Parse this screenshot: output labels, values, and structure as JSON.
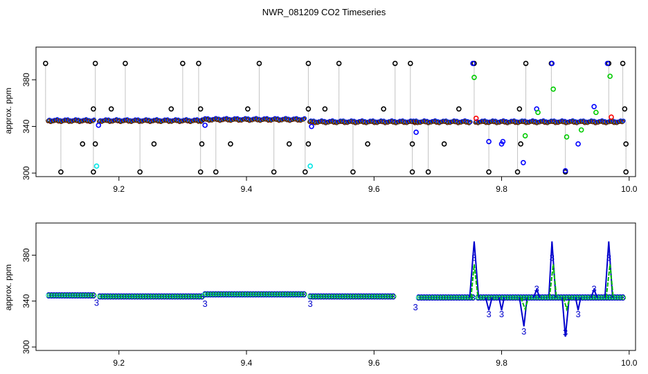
{
  "chart_data": [
    {
      "type": "scatter",
      "title": "NWR_081209  CO2 Timeseries",
      "ylabel": "approx. ppm",
      "xlabel": "",
      "xlim": [
        9.07,
        10.01
      ],
      "ylim": [
        297,
        408
      ],
      "x_ticks": [
        "9.2",
        "9.4",
        "9.6",
        "9.8",
        "10.0"
      ],
      "y_ticks": [
        "300",
        "340",
        "380"
      ],
      "grid": false,
      "colors": {
        "black": "#000000",
        "red": "#ff0000",
        "green": "#00cc00",
        "blue": "#0000ff",
        "cyan": "#00e5e5",
        "connector": "#888888"
      },
      "baseline_segments": [
        {
          "x": [
            9.09,
            9.16
          ],
          "y": 345
        },
        {
          "x": [
            9.17,
            9.33
          ],
          "y": 345
        },
        {
          "x": [
            9.33,
            9.49
          ],
          "y": 346
        },
        {
          "x": [
            9.5,
            9.665
          ],
          "y": 344
        },
        {
          "x": [
            9.665,
            9.75
          ],
          "y": 344
        },
        {
          "x": [
            9.76,
            9.99
          ],
          "y": 344
        }
      ],
      "spikes_high": [
        9.085,
        9.163,
        9.21,
        9.3,
        9.325,
        9.42,
        9.497,
        9.545,
        9.633,
        9.657,
        9.757,
        9.838,
        9.878,
        9.968,
        9.99
      ],
      "spikes_low": [
        9.109,
        9.16,
        9.233,
        9.328,
        9.352,
        9.443,
        9.492,
        9.567,
        9.66,
        9.685,
        9.78,
        9.825,
        9.9,
        9.995
      ],
      "isolated_points": [
        {
          "x": 9.143,
          "y": 325,
          "color": "black"
        },
        {
          "x": 9.16,
          "y": 355,
          "color": "black"
        },
        {
          "x": 9.163,
          "y": 325,
          "color": "black"
        },
        {
          "x": 9.165,
          "y": 306,
          "color": "cyan"
        },
        {
          "x": 9.168,
          "y": 341,
          "color": "blue"
        },
        {
          "x": 9.188,
          "y": 355,
          "color": "black"
        },
        {
          "x": 9.255,
          "y": 325,
          "color": "black"
        },
        {
          "x": 9.282,
          "y": 355,
          "color": "black"
        },
        {
          "x": 9.328,
          "y": 355,
          "color": "black"
        },
        {
          "x": 9.33,
          "y": 325,
          "color": "black"
        },
        {
          "x": 9.335,
          "y": 341,
          "color": "blue"
        },
        {
          "x": 9.375,
          "y": 325,
          "color": "black"
        },
        {
          "x": 9.402,
          "y": 355,
          "color": "black"
        },
        {
          "x": 9.467,
          "y": 325,
          "color": "black"
        },
        {
          "x": 9.497,
          "y": 355,
          "color": "black"
        },
        {
          "x": 9.497,
          "y": 325,
          "color": "black"
        },
        {
          "x": 9.5,
          "y": 306,
          "color": "cyan"
        },
        {
          "x": 9.502,
          "y": 340,
          "color": "blue"
        },
        {
          "x": 9.523,
          "y": 355,
          "color": "black"
        },
        {
          "x": 9.59,
          "y": 325,
          "color": "black"
        },
        {
          "x": 9.615,
          "y": 355,
          "color": "black"
        },
        {
          "x": 9.66,
          "y": 325,
          "color": "black"
        },
        {
          "x": 9.666,
          "y": 335,
          "color": "blue"
        },
        {
          "x": 9.71,
          "y": 325,
          "color": "black"
        },
        {
          "x": 9.733,
          "y": 355,
          "color": "black"
        },
        {
          "x": 9.755,
          "y": 394,
          "color": "blue"
        },
        {
          "x": 9.757,
          "y": 382,
          "color": "green"
        },
        {
          "x": 9.76,
          "y": 347,
          "color": "red"
        },
        {
          "x": 9.78,
          "y": 327,
          "color": "blue"
        },
        {
          "x": 9.8,
          "y": 325,
          "color": "blue"
        },
        {
          "x": 9.802,
          "y": 327,
          "color": "blue"
        },
        {
          "x": 9.828,
          "y": 355,
          "color": "black"
        },
        {
          "x": 9.83,
          "y": 325,
          "color": "black"
        },
        {
          "x": 9.834,
          "y": 309,
          "color": "blue"
        },
        {
          "x": 9.837,
          "y": 332,
          "color": "green"
        },
        {
          "x": 9.855,
          "y": 355,
          "color": "blue"
        },
        {
          "x": 9.857,
          "y": 352,
          "color": "green"
        },
        {
          "x": 9.879,
          "y": 394,
          "color": "blue"
        },
        {
          "x": 9.881,
          "y": 372,
          "color": "green"
        },
        {
          "x": 9.902,
          "y": 331,
          "color": "green"
        },
        {
          "x": 9.9,
          "y": 302,
          "color": "blue"
        },
        {
          "x": 9.92,
          "y": 325,
          "color": "blue"
        },
        {
          "x": 9.925,
          "y": 337,
          "color": "green"
        },
        {
          "x": 9.945,
          "y": 357,
          "color": "blue"
        },
        {
          "x": 9.948,
          "y": 352,
          "color": "green"
        },
        {
          "x": 9.966,
          "y": 394,
          "color": "blue"
        },
        {
          "x": 9.97,
          "y": 383,
          "color": "green"
        },
        {
          "x": 9.972,
          "y": 348,
          "color": "red"
        },
        {
          "x": 9.993,
          "y": 355,
          "color": "black"
        },
        {
          "x": 9.995,
          "y": 325,
          "color": "black"
        }
      ]
    },
    {
      "type": "line",
      "title": "",
      "ylabel": "approx. ppm",
      "xlabel": "",
      "xlim": [
        9.07,
        10.01
      ],
      "ylim": [
        297,
        408
      ],
      "x_ticks": [
        "9.2",
        "9.4",
        "9.6",
        "9.8",
        "10.0"
      ],
      "y_ticks": [
        "300",
        "340",
        "380"
      ],
      "grid": false,
      "marker_label": "3",
      "colors": {
        "blue": "#0000cc",
        "green": "#00bb00",
        "cyan": "#00cccc"
      },
      "baseline_segments": [
        {
          "x": [
            9.09,
            9.16
          ],
          "y": 345
        },
        {
          "x": [
            9.17,
            9.33
          ],
          "y": 344
        },
        {
          "x": [
            9.335,
            9.49
          ],
          "y": 346
        },
        {
          "x": [
            9.5,
            9.63
          ],
          "y": 344
        },
        {
          "x": [
            9.67,
            9.755
          ],
          "y": 343
        },
        {
          "x": [
            9.763,
            9.99
          ],
          "y": 343
        }
      ],
      "labeled_points": [
        {
          "x": 9.165,
          "y": 339
        },
        {
          "x": 9.335,
          "y": 338
        },
        {
          "x": 9.5,
          "y": 338
        },
        {
          "x": 9.665,
          "y": 335
        },
        {
          "x": 9.757,
          "y": 378
        },
        {
          "x": 9.78,
          "y": 329
        },
        {
          "x": 9.8,
          "y": 329
        },
        {
          "x": 9.835,
          "y": 314
        },
        {
          "x": 9.855,
          "y": 351
        },
        {
          "x": 9.879,
          "y": 378
        },
        {
          "x": 9.9,
          "y": 313
        },
        {
          "x": 9.92,
          "y": 329
        },
        {
          "x": 9.945,
          "y": 351
        },
        {
          "x": 9.968,
          "y": 378
        }
      ],
      "spike_lines": [
        {
          "color": "blue",
          "points": [
            [
              9.75,
              343
            ],
            [
              9.757,
              392
            ],
            [
              9.764,
              343
            ]
          ]
        },
        {
          "color": "blue",
          "points": [
            [
              9.874,
              343
            ],
            [
              9.879,
              392
            ],
            [
              9.885,
              343
            ]
          ]
        },
        {
          "color": "blue",
          "points": [
            [
              9.962,
              343
            ],
            [
              9.968,
              392
            ],
            [
              9.974,
              343
            ]
          ]
        },
        {
          "color": "blue",
          "points": [
            [
              9.775,
              343
            ],
            [
              9.78,
              332
            ],
            [
              9.785,
              343
            ]
          ]
        },
        {
          "color": "blue",
          "points": [
            [
              9.796,
              343
            ],
            [
              9.8,
              332
            ],
            [
              9.804,
              343
            ]
          ]
        },
        {
          "color": "blue",
          "points": [
            [
              9.828,
              343
            ],
            [
              9.835,
              318
            ],
            [
              9.84,
              343
            ]
          ]
        },
        {
          "color": "blue",
          "points": [
            [
              9.895,
              343
            ],
            [
              9.9,
              309
            ],
            [
              9.906,
              343
            ]
          ]
        },
        {
          "color": "blue",
          "points": [
            [
              9.916,
              343
            ],
            [
              9.92,
              332
            ],
            [
              9.924,
              343
            ]
          ]
        },
        {
          "color": "blue",
          "points": [
            [
              9.85,
              343
            ],
            [
              9.855,
              350
            ],
            [
              9.86,
              343
            ]
          ]
        },
        {
          "color": "blue",
          "points": [
            [
              9.94,
              343
            ],
            [
              9.945,
              350
            ],
            [
              9.95,
              343
            ]
          ]
        },
        {
          "color": "green",
          "points": [
            [
              9.752,
              343
            ],
            [
              9.757,
              372
            ],
            [
              9.763,
              343
            ]
          ]
        },
        {
          "color": "green",
          "points": [
            [
              9.875,
              343
            ],
            [
              9.881,
              372
            ],
            [
              9.886,
              343
            ]
          ]
        },
        {
          "color": "green",
          "points": [
            [
              9.964,
              343
            ],
            [
              9.97,
              372
            ],
            [
              9.975,
              343
            ]
          ]
        },
        {
          "color": "green",
          "points": [
            [
              9.83,
              343
            ],
            [
              9.837,
              333
            ],
            [
              9.842,
              343
            ]
          ]
        },
        {
          "color": "green",
          "points": [
            [
              9.897,
              343
            ],
            [
              9.902,
              333
            ],
            [
              9.907,
              343
            ]
          ]
        }
      ]
    }
  ]
}
